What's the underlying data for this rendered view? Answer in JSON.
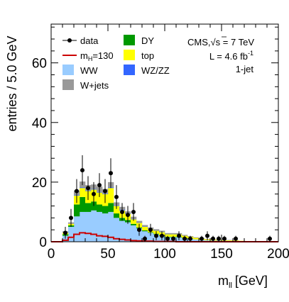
{
  "chart_data": {
    "type": "bar",
    "stacked": true,
    "xlabel": "m",
    "xlabel_sub": "ll",
    "xlabel_unit": "[GeV]",
    "ylabel": "entries / 5.0 GeV",
    "xlim": [
      0,
      200
    ],
    "ylim": [
      0,
      73
    ],
    "x_ticks": [
      0,
      50,
      100,
      150,
      200
    ],
    "y_ticks": [
      0,
      20,
      40,
      60
    ],
    "bin_width": 5,
    "bin_edges_start": [
      10,
      15,
      20,
      25,
      30,
      35,
      40,
      45,
      50,
      55,
      60,
      65,
      70,
      75,
      80,
      85,
      90,
      95,
      100,
      105,
      110,
      115,
      120,
      125,
      130,
      135,
      140,
      145,
      150,
      155,
      160,
      165,
      170,
      175,
      180,
      185,
      190,
      195
    ],
    "series": [
      {
        "name": "WW",
        "color": "#99ccff",
        "values": [
          2.0,
          5.0,
          8.5,
          10.0,
          10.0,
          10.5,
          10.0,
          9.5,
          10.0,
          8.0,
          7.0,
          6.5,
          5.5,
          4.5,
          3.5,
          3.0,
          2.5,
          2.0,
          1.5,
          1.5,
          1.5,
          1.2,
          1.0,
          0.8,
          0.6,
          0.5,
          0.4,
          0.4,
          0.3,
          0.3,
          0.2,
          0.2,
          0.1,
          0.1,
          0.1,
          0.1,
          0.1,
          0.0
        ]
      },
      {
        "name": "DY",
        "color": "#009900",
        "values": [
          0.5,
          0.5,
          4.0,
          5.0,
          3.0,
          3.0,
          2.5,
          2.5,
          3.0,
          1.5,
          1.0,
          0.8,
          0.5,
          0.3,
          0.3,
          0.2,
          0.2,
          0.2,
          0.2,
          0.2,
          0.2,
          0.1,
          0.1,
          0.0,
          0.0,
          0.0,
          0.0,
          0.0,
          0.0,
          0.0,
          0.0,
          0.0,
          0.0,
          0.0,
          0.0,
          0.0,
          0.0,
          0.0
        ]
      },
      {
        "name": "top",
        "color": "#ffff00",
        "values": [
          0.5,
          0.5,
          3.0,
          3.0,
          4.0,
          4.0,
          4.0,
          4.0,
          5.0,
          2.5,
          2.5,
          2.0,
          1.5,
          1.5,
          1.2,
          1.0,
          1.0,
          1.0,
          0.8,
          0.8,
          0.8,
          0.7,
          0.6,
          0.5,
          0.4,
          0.3,
          0.3,
          0.2,
          0.2,
          0.2,
          0.2,
          0.1,
          0.1,
          0.1,
          0.1,
          0.1,
          0.1,
          0.1
        ]
      },
      {
        "name": "WZ/ZZ",
        "color": "#3366ff",
        "values": [
          0.0,
          0.0,
          0.2,
          0.2,
          0.2,
          0.2,
          0.2,
          0.2,
          0.2,
          0.2,
          0.2,
          0.1,
          0.1,
          0.1,
          0.1,
          0.1,
          0.1,
          0.1,
          0.1,
          0.1,
          0.1,
          0.0,
          0.0,
          0.0,
          0.0,
          0.0,
          0.0,
          0.0,
          0.0,
          0.0,
          0.0,
          0.0,
          0.0,
          0.0,
          0.0,
          0.0,
          0.0,
          0.0
        ]
      },
      {
        "name": "W+jets",
        "color": "#999999",
        "values": [
          0.5,
          0.5,
          1.5,
          2.0,
          1.8,
          1.5,
          1.8,
          1.5,
          1.8,
          1.0,
          1.0,
          0.8,
          0.8,
          0.6,
          0.5,
          0.5,
          0.4,
          0.4,
          0.3,
          0.3,
          0.3,
          0.3,
          0.2,
          0.2,
          0.2,
          0.1,
          0.1,
          0.1,
          0.1,
          0.1,
          0.1,
          0.0,
          0.0,
          0.0,
          0.0,
          0.0,
          0.0,
          0.0
        ]
      }
    ],
    "signal": {
      "name": "m_H=130",
      "color": "#cc0000",
      "values": [
        0.5,
        1.5,
        2.5,
        3.0,
        2.8,
        2.5,
        2.0,
        1.8,
        1.5,
        1.0,
        0.8,
        0.6,
        0.4,
        0.3,
        0.2,
        0.2,
        0.1,
        0.1,
        0.1,
        0.1,
        0.0,
        0.0,
        0.0,
        0.0,
        0.0,
        0.0,
        0.0,
        0.0,
        0.0,
        0.0,
        0.0,
        0.0,
        0.0,
        0.0,
        0.0,
        0.0,
        0.0,
        0.0
      ]
    },
    "data_points": [
      {
        "x": 12.5,
        "y": 3,
        "err": 2
      },
      {
        "x": 17.5,
        "y": 8,
        "err": 3
      },
      {
        "x": 22.5,
        "y": 17,
        "err": 4
      },
      {
        "x": 27.5,
        "y": 24,
        "err": 5
      },
      {
        "x": 32.5,
        "y": 18,
        "err": 4
      },
      {
        "x": 37.5,
        "y": 16,
        "err": 4
      },
      {
        "x": 42.5,
        "y": 19,
        "err": 4
      },
      {
        "x": 47.5,
        "y": 17,
        "err": 4
      },
      {
        "x": 52.5,
        "y": 23,
        "err": 5
      },
      {
        "x": 57.5,
        "y": 15,
        "err": 4
      },
      {
        "x": 62.5,
        "y": 10,
        "err": 3
      },
      {
        "x": 67.5,
        "y": 9,
        "err": 3
      },
      {
        "x": 72.5,
        "y": 10,
        "err": 3
      },
      {
        "x": 77.5,
        "y": 4,
        "err": 2
      },
      {
        "x": 82.5,
        "y": 1,
        "err": 1
      },
      {
        "x": 87.5,
        "y": 4,
        "err": 2
      },
      {
        "x": 92.5,
        "y": 2,
        "err": 1.5
      },
      {
        "x": 97.5,
        "y": 2,
        "err": 1.5
      },
      {
        "x": 102.5,
        "y": 1,
        "err": 1
      },
      {
        "x": 107.5,
        "y": 1,
        "err": 1
      },
      {
        "x": 112.5,
        "y": 2,
        "err": 1.5
      },
      {
        "x": 117.5,
        "y": 1,
        "err": 1
      },
      {
        "x": 122.5,
        "y": 1,
        "err": 1
      },
      {
        "x": 132.5,
        "y": 1,
        "err": 1
      },
      {
        "x": 137.5,
        "y": 2,
        "err": 1.5
      },
      {
        "x": 142.5,
        "y": 1,
        "err": 1
      },
      {
        "x": 147.5,
        "y": 1,
        "err": 1
      },
      {
        "x": 152.5,
        "y": 1,
        "err": 1
      },
      {
        "x": 162.5,
        "y": 1,
        "err": 1
      },
      {
        "x": 192.5,
        "y": 1,
        "err": 1
      }
    ],
    "legend": [
      {
        "key": "data",
        "label": "data",
        "style": "marker"
      },
      {
        "key": "DY",
        "label": "DY",
        "style": "box",
        "color": "#009900"
      },
      {
        "key": "signal",
        "label": "m",
        "sub": "H",
        "label_tail": "=130",
        "style": "line",
        "color": "#cc0000"
      },
      {
        "key": "top",
        "label": "top",
        "style": "box",
        "color": "#ffff00"
      },
      {
        "key": "WW",
        "label": "WW",
        "style": "box",
        "color": "#99ccff"
      },
      {
        "key": "WZZZ",
        "label": "WZ/ZZ",
        "style": "box",
        "color": "#3366ff"
      },
      {
        "key": "Wjets",
        "label": "W+jets",
        "style": "box",
        "color": "#999999"
      }
    ],
    "legend_position": "top-left",
    "info": {
      "cms_prefix": "CMS,",
      "sqrt_s": "s",
      "energy": " = 7 TeV",
      "lumi": "L = 4.6 fb",
      "lumi_sup": "-1",
      "category": "1-jet"
    }
  }
}
